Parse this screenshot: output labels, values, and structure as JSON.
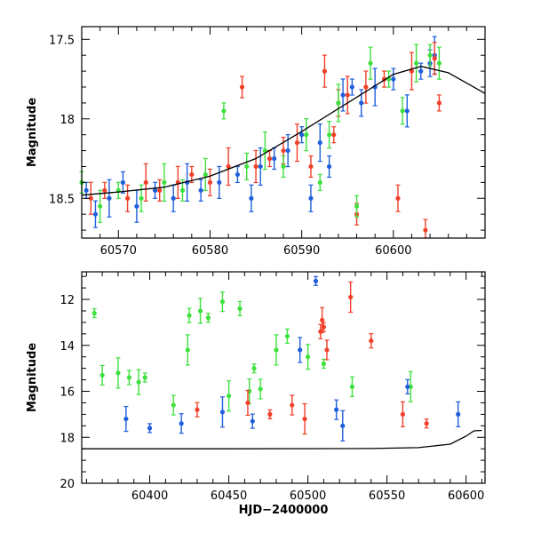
{
  "colors": {
    "blue": "#1f5fdc",
    "red": "#f0402a",
    "green": "#3ee03e",
    "model": "#000000"
  },
  "chart_data": [
    {
      "type": "scatter",
      "ylabel": "Magnitude",
      "xlabel": "",
      "xlim": [
        60566,
        60610
      ],
      "ylim": [
        18.75,
        17.42
      ],
      "y_inverted": true,
      "xticks": [
        60570,
        60580,
        60590,
        60600
      ],
      "yticks": [
        17.5,
        18,
        18.5
      ],
      "model_curve": {
        "x": [
          60566,
          60570,
          60575,
          60580,
          60585,
          60590,
          60595,
          60600,
          60603,
          60606,
          60610
        ],
        "y": [
          18.48,
          18.46,
          18.43,
          18.36,
          18.25,
          18.08,
          17.9,
          17.72,
          17.67,
          17.71,
          17.84
        ]
      },
      "series": [
        {
          "color": "blue",
          "x": [
            60566.5,
            60567.5,
            60569,
            60570.5,
            60572,
            60574,
            60576,
            60577.5,
            60579,
            60581,
            60583,
            60584.5,
            60585.5,
            60587,
            60588.5,
            60590,
            60591,
            60592,
            60593,
            60594.5,
            60595.5,
            60596.5,
            60598,
            60600,
            60601.5,
            60603,
            60604,
            60604.5
          ],
          "y": [
            18.45,
            18.6,
            18.5,
            18.4,
            18.55,
            18.45,
            18.5,
            18.4,
            18.45,
            18.4,
            18.35,
            18.5,
            18.3,
            18.25,
            18.2,
            18.1,
            18.5,
            18.15,
            18.3,
            17.85,
            17.8,
            17.9,
            17.8,
            17.75,
            17.95,
            17.7,
            17.65,
            17.6
          ]
        },
        {
          "color": "red",
          "x": [
            60567,
            60568.5,
            60571,
            60573,
            60574.5,
            60576.5,
            60578,
            60580,
            60582,
            60583.5,
            60585,
            60586.5,
            60588,
            60589.5,
            60591,
            60592.5,
            60593.5,
            60594,
            60595,
            60596,
            60597,
            60599,
            60600.5,
            60602,
            60603.5,
            60604.5,
            60605
          ],
          "y": [
            18.5,
            18.45,
            18.5,
            18.4,
            18.45,
            18.4,
            18.35,
            18.4,
            18.3,
            17.8,
            18.3,
            18.25,
            18.2,
            18.15,
            18.3,
            17.7,
            18.1,
            17.9,
            17.85,
            18.6,
            17.8,
            17.75,
            18.5,
            17.7,
            18.7,
            17.62,
            17.9
          ]
        },
        {
          "color": "green",
          "x": [
            60566,
            60568,
            60570,
            60572.5,
            60575,
            60577,
            60579.5,
            60581.5,
            60584,
            60586,
            60588,
            60590.5,
            60592,
            60593,
            60594,
            60596,
            60597.5,
            60599.5,
            60601,
            60602.5,
            60604,
            60605
          ],
          "y": [
            18.4,
            18.55,
            18.45,
            18.5,
            18.4,
            18.45,
            18.35,
            17.95,
            18.3,
            18.2,
            18.3,
            18.1,
            18.4,
            18.1,
            17.9,
            18.55,
            17.65,
            17.75,
            17.95,
            17.65,
            17.6,
            17.65
          ]
        }
      ]
    },
    {
      "type": "scatter",
      "ylabel": "Magnitude",
      "xlabel": "HJD−2400000",
      "xlim": [
        60357,
        60612
      ],
      "ylim": [
        20,
        10.8
      ],
      "y_inverted": true,
      "xticks": [
        60400,
        60450,
        60500,
        60550,
        60600
      ],
      "yticks": [
        12,
        14,
        16,
        18,
        20
      ],
      "model_curve": {
        "x": [
          60357,
          60450,
          60540,
          60570,
          60590,
          60600,
          60605,
          60610
        ],
        "y": [
          18.5,
          18.5,
          18.49,
          18.45,
          18.3,
          17.95,
          17.72,
          17.7
        ]
      },
      "series": [
        {
          "color": "green",
          "x": [
            60365,
            60370,
            60380,
            60387,
            60393,
            60397,
            60415,
            60424,
            60425,
            60432,
            60437,
            60446,
            60450,
            60457,
            60463,
            60466,
            60470,
            60480,
            60487,
            60500,
            60510,
            60528,
            60565
          ],
          "y": [
            12.6,
            15.3,
            15.2,
            15.4,
            15.6,
            15.4,
            16.6,
            14.2,
            12.7,
            12.5,
            12.8,
            12.1,
            16.2,
            12.4,
            16.0,
            15.0,
            15.9,
            14.2,
            13.6,
            14.5,
            14.8,
            15.8,
            15.8
          ]
        },
        {
          "color": "blue",
          "x": [
            60385,
            60400,
            60420,
            60446,
            60465,
            60495,
            60505,
            60518,
            60522,
            60563,
            60595
          ],
          "y": [
            17.2,
            17.6,
            17.4,
            16.9,
            17.3,
            14.2,
            11.2,
            16.8,
            17.5,
            15.8,
            17.0
          ]
        },
        {
          "color": "red",
          "x": [
            60430,
            60462,
            60476,
            60490,
            60498,
            60508,
            60509,
            60510,
            60512,
            60527,
            60540,
            60560,
            60575
          ],
          "y": [
            16.8,
            16.5,
            17.0,
            16.6,
            17.2,
            13.4,
            12.9,
            13.2,
            14.2,
            11.9,
            13.8,
            17.0,
            17.4
          ]
        }
      ]
    }
  ]
}
